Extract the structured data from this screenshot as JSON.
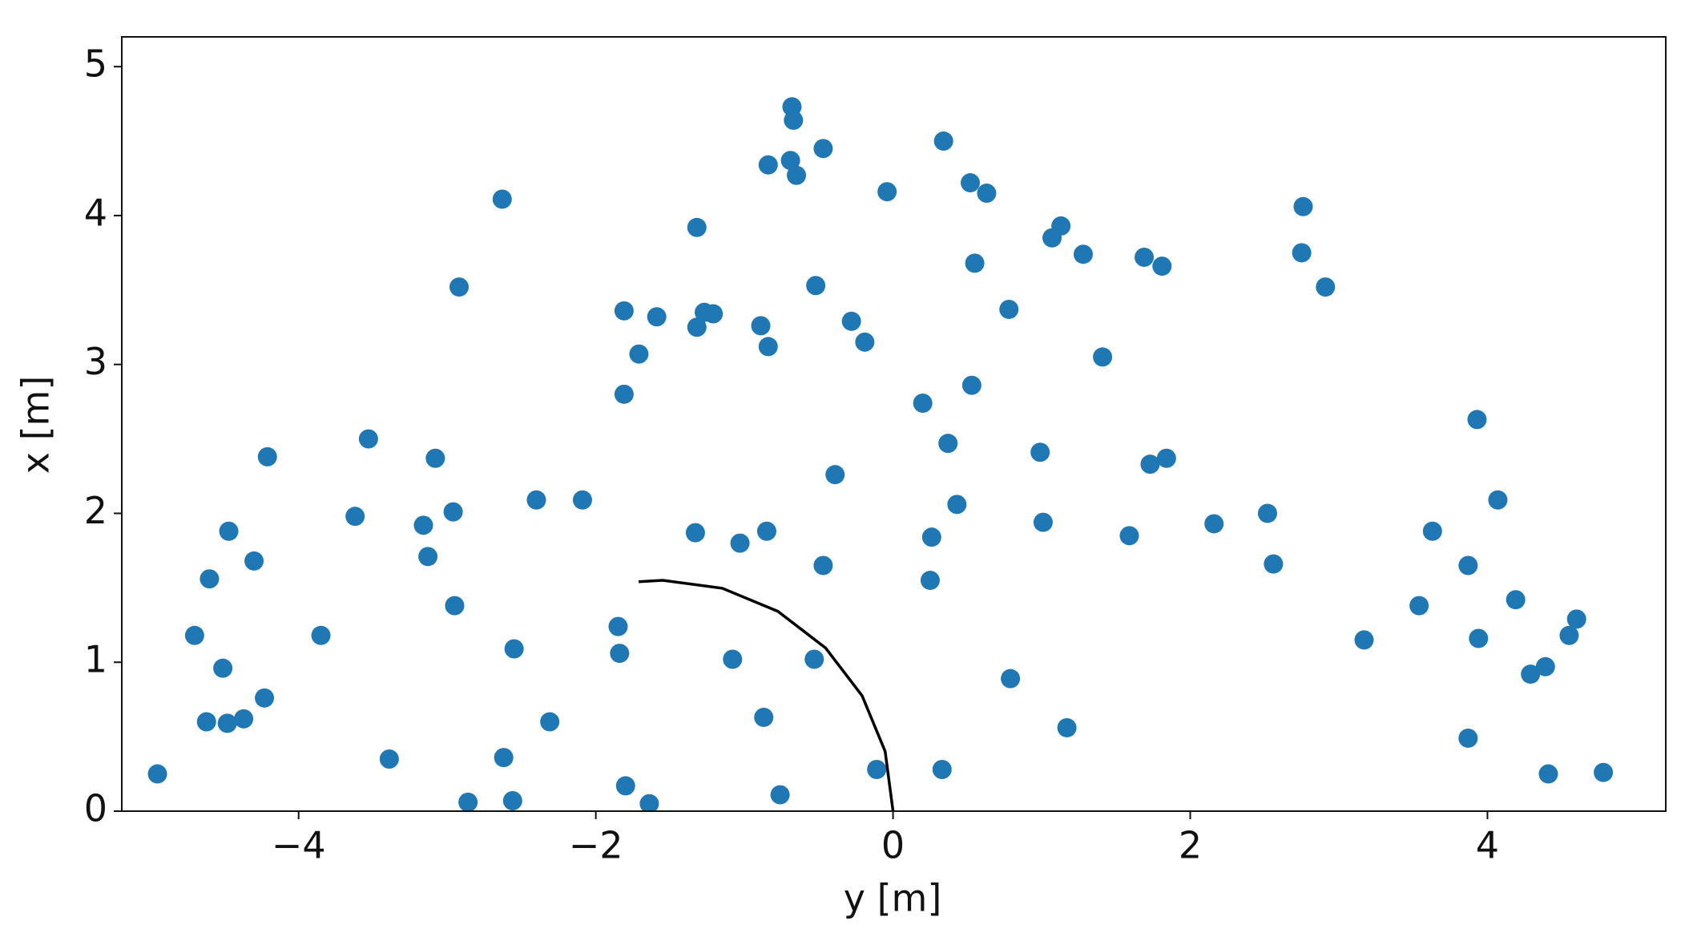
{
  "chart_data": {
    "type": "scatter",
    "xlabel": "y [m]",
    "ylabel": "x [m]",
    "xlim": [
      -5.19,
      5.2
    ],
    "ylim": [
      0,
      5.2
    ],
    "xticks": [
      {
        "value": -4,
        "label": "−4"
      },
      {
        "value": -2,
        "label": "−2"
      },
      0,
      2,
      4
    ],
    "yticks": [
      0,
      1,
      2,
      3,
      4,
      5
    ],
    "grid": false,
    "series": [
      {
        "kind": "scatter",
        "color": "#1f77b4",
        "x": [
          -4.95,
          -4.7,
          -4.62,
          -4.6,
          -4.51,
          -4.48,
          -4.47,
          -4.37,
          -4.3,
          -4.23,
          -4.21,
          -3.85,
          -3.62,
          -3.53,
          -3.39,
          -3.16,
          -3.13,
          -3.08,
          -2.96,
          -2.95,
          -2.92,
          -2.86,
          -2.63,
          -2.62,
          -2.56,
          -2.55,
          -2.4,
          -2.31,
          -2.09,
          -1.85,
          -1.84,
          -1.81,
          -1.81,
          -1.8,
          -1.71,
          -1.64,
          -1.59,
          -1.33,
          -1.32,
          -1.32,
          -1.27,
          -1.21,
          -1.08,
          -1.03,
          -0.89,
          -0.87,
          -0.85,
          -0.84,
          -0.84,
          -0.76,
          -0.69,
          -0.68,
          -0.67,
          -0.65,
          -0.53,
          -0.52,
          -0.47,
          -0.47,
          -0.39,
          -0.28,
          -0.19,
          -0.11,
          -0.04,
          0.2,
          0.25,
          0.26,
          0.33,
          0.34,
          0.37,
          0.43,
          0.52,
          0.53,
          0.55,
          0.63,
          0.78,
          0.79,
          0.99,
          1.01,
          1.07,
          1.13,
          1.17,
          1.28,
          1.41,
          1.59,
          1.69,
          1.73,
          1.81,
          1.84,
          2.16,
          2.52,
          2.56,
          2.75,
          2.76,
          2.91,
          3.17,
          3.54,
          3.63,
          3.87,
          3.87,
          3.93,
          3.94,
          4.07,
          4.19,
          4.29,
          4.39,
          4.41,
          4.55,
          4.6,
          4.78
        ],
        "values": [
          0.25,
          1.18,
          0.6,
          1.56,
          0.96,
          0.59,
          1.88,
          0.62,
          1.68,
          0.76,
          2.38,
          1.18,
          1.98,
          2.5,
          0.35,
          1.92,
          1.71,
          2.37,
          2.01,
          1.38,
          3.52,
          0.06,
          4.11,
          0.36,
          0.07,
          1.09,
          2.09,
          0.6,
          2.09,
          1.24,
          1.06,
          3.36,
          2.8,
          0.17,
          3.07,
          0.05,
          3.32,
          1.87,
          3.92,
          3.25,
          3.35,
          3.34,
          1.02,
          1.8,
          3.26,
          0.63,
          1.88,
          3.12,
          4.34,
          0.11,
          4.37,
          4.73,
          4.64,
          4.27,
          1.02,
          3.53,
          1.65,
          4.45,
          2.26,
          3.29,
          3.15,
          0.28,
          4.16,
          2.74,
          1.55,
          1.84,
          0.28,
          4.5,
          2.47,
          2.06,
          4.22,
          2.86,
          3.68,
          4.15,
          3.37,
          0.89,
          2.41,
          1.94,
          3.85,
          3.93,
          0.56,
          3.74,
          3.05,
          1.85,
          3.72,
          2.33,
          3.66,
          2.37,
          1.93,
          2.0,
          1.66,
          3.75,
          4.06,
          3.52,
          1.15,
          1.38,
          1.88,
          0.49,
          1.65,
          2.63,
          1.16,
          2.09,
          1.42,
          0.92,
          0.97,
          0.25,
          1.18,
          1.29,
          0.26
        ]
      },
      {
        "kind": "line",
        "color": "#000000",
        "x": [
          0,
          -0.053,
          -0.208,
          -0.454,
          -0.775,
          -1.149,
          -1.55,
          -1.712
        ],
        "values": [
          0,
          0.401,
          0.775,
          1.096,
          1.342,
          1.497,
          1.55,
          1.541
        ]
      }
    ]
  }
}
